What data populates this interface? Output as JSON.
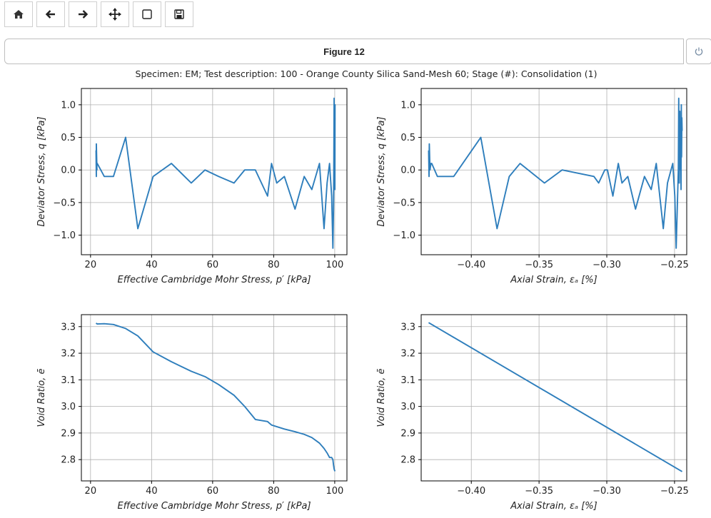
{
  "toolbar": {
    "buttons": [
      {
        "name": "home-button",
        "icon": "home-icon"
      },
      {
        "name": "back-button",
        "icon": "arrow-left-icon"
      },
      {
        "name": "forward-button",
        "icon": "arrow-right-icon"
      },
      {
        "name": "pan-button",
        "icon": "move-icon"
      },
      {
        "name": "zoom-rect-button",
        "icon": "square-icon"
      },
      {
        "name": "save-button",
        "icon": "floppy-disk-icon"
      }
    ]
  },
  "figure": {
    "title": "Figure 12",
    "close_icon": "power-icon",
    "suptitle": "Specimen: EM; Test description: 100 - Orange County Silica Sand-Mesh 60; Stage (#): Consolidation (1)"
  },
  "colors": {
    "series": "#2e7ebc",
    "grid": "#b0b0b0",
    "axis": "#000000"
  },
  "chart_data": [
    {
      "type": "line",
      "xlabel": "Effective Cambridge Mohr Stress,  p′ [kPa]",
      "ylabel": "Deviator Stress,  q [kPa]",
      "xlim": [
        17,
        104
      ],
      "ylim": [
        -1.3,
        1.25
      ],
      "xticks": [
        20,
        40,
        60,
        80,
        100
      ],
      "xtick_labels": [
        "20",
        "40",
        "60",
        "80",
        "100"
      ],
      "yticks": [
        -1.0,
        -0.5,
        0.0,
        0.5,
        1.0
      ],
      "ytick_labels": [
        "−1.0",
        "−0.5",
        "0.0",
        "0.5",
        "1.0"
      ],
      "grid": true,
      "x": [
        21.8,
        21.9,
        21.9,
        22.1,
        22.0,
        22.2,
        24.5,
        27.5,
        31.5,
        35.5,
        40.5,
        46.5,
        53,
        57.5,
        62,
        67,
        70.5,
        74,
        78,
        79.3,
        81,
        83.5,
        87,
        90,
        92.5,
        95,
        96.5,
        97.5,
        98.3,
        99,
        99.4,
        99.6,
        99.7,
        99.8,
        99.85,
        99.9,
        99.95,
        100.0,
        100.05,
        100.1,
        100.0,
        100.1,
        100.05
      ],
      "y": [
        0.3,
        -0.1,
        0.4,
        0.0,
        0.1,
        0.1,
        -0.1,
        -0.1,
        0.5,
        -0.9,
        -0.1,
        0.1,
        -0.2,
        0.0,
        -0.1,
        -0.2,
        0.0,
        0.0,
        -0.4,
        0.1,
        -0.2,
        -0.1,
        -0.6,
        -0.1,
        -0.3,
        0.1,
        -0.9,
        -0.2,
        0.1,
        -0.4,
        -1.2,
        -0.6,
        0.0,
        1.1,
        -0.2,
        0.9,
        0.0,
        0.6,
        -0.3,
        1.0,
        0.2,
        0.8,
        0.6
      ]
    },
    {
      "type": "line",
      "xlabel": "Axial Strain,  εₐ [%]",
      "ylabel": "Deviator Stress,  q [kPa]",
      "xlim": [
        -0.437,
        -0.241
      ],
      "ylim": [
        -1.3,
        1.25
      ],
      "xticks": [
        -0.4,
        -0.35,
        -0.3,
        -0.25
      ],
      "xtick_labels": [
        "−0.40",
        "−0.35",
        "−0.30",
        "−0.25"
      ],
      "yticks": [
        -1.0,
        -0.5,
        0.0,
        0.5,
        1.0
      ],
      "ytick_labels": [
        "−1.0",
        "−0.5",
        "0.0",
        "0.5",
        "1.0"
      ],
      "grid": true,
      "x": [
        -0.4315,
        -0.4312,
        -0.431,
        -0.4305,
        -0.4298,
        -0.4292,
        -0.425,
        -0.413,
        -0.393,
        -0.381,
        -0.372,
        -0.364,
        -0.346,
        -0.333,
        -0.3095,
        -0.306,
        -0.3015,
        -0.2995,
        -0.2955,
        -0.2915,
        -0.2888,
        -0.2845,
        -0.2788,
        -0.2722,
        -0.2672,
        -0.2635,
        -0.2583,
        -0.2552,
        -0.2513,
        -0.2498,
        -0.2488,
        -0.248,
        -0.2472,
        -0.2469,
        -0.2465,
        -0.2461,
        -0.2458,
        -0.2455,
        -0.2452,
        -0.245,
        -0.2448,
        -0.2446,
        -0.2444
      ],
      "y": [
        0.3,
        -0.1,
        0.4,
        0.0,
        0.1,
        0.1,
        -0.1,
        -0.1,
        0.5,
        -0.9,
        -0.1,
        0.1,
        -0.2,
        0.0,
        -0.1,
        -0.2,
        0.0,
        0.0,
        -0.4,
        0.1,
        -0.2,
        -0.1,
        -0.6,
        -0.1,
        -0.3,
        0.1,
        -0.9,
        -0.2,
        0.1,
        -0.4,
        -1.2,
        -0.6,
        0.0,
        1.1,
        -0.2,
        0.9,
        0.0,
        0.6,
        -0.3,
        1.0,
        0.2,
        0.8,
        0.6
      ]
    },
    {
      "type": "line",
      "xlabel": "Effective Cambridge Mohr Stress,  p′ [kPa]",
      "ylabel": "Void Ratio,  ē",
      "xlim": [
        17,
        104
      ],
      "ylim": [
        2.72,
        3.345
      ],
      "xticks": [
        20,
        40,
        60,
        80,
        100
      ],
      "xtick_labels": [
        "20",
        "40",
        "60",
        "80",
        "100"
      ],
      "yticks": [
        2.8,
        2.9,
        3.0,
        3.1,
        3.2,
        3.3
      ],
      "ytick_labels": [
        "2.8",
        "2.9",
        "3.0",
        "3.1",
        "3.2",
        "3.3"
      ],
      "grid": true,
      "x": [
        21.8,
        22.2,
        24.5,
        27.5,
        31.5,
        35.5,
        40.5,
        46.5,
        53,
        57.5,
        62,
        67,
        70.5,
        74,
        78,
        79.3,
        83.5,
        87,
        90,
        92.5,
        95,
        96.5,
        97.5,
        98.3,
        99.0,
        99.4,
        99.6,
        99.8,
        100.0,
        100.1
      ],
      "y": [
        3.313,
        3.31,
        3.311,
        3.308,
        3.293,
        3.265,
        3.205,
        3.168,
        3.132,
        3.112,
        3.082,
        3.042,
        3.0,
        2.951,
        2.943,
        2.93,
        2.915,
        2.905,
        2.895,
        2.883,
        2.862,
        2.842,
        2.825,
        2.808,
        2.808,
        2.8,
        2.78,
        2.765,
        2.758,
        2.76
      ]
    },
    {
      "type": "line",
      "xlabel": "Axial Strain,  εₐ [%]",
      "ylabel": "Void Ratio,  ē",
      "xlim": [
        -0.437,
        -0.241
      ],
      "ylim": [
        2.72,
        3.345
      ],
      "xticks": [
        -0.4,
        -0.35,
        -0.3,
        -0.25
      ],
      "xtick_labels": [
        "−0.40",
        "−0.35",
        "−0.30",
        "−0.25"
      ],
      "yticks": [
        2.8,
        2.9,
        3.0,
        3.1,
        3.2,
        3.3
      ],
      "ytick_labels": [
        "2.8",
        "2.9",
        "3.0",
        "3.1",
        "3.2",
        "3.3"
      ],
      "grid": true,
      "x": [
        -0.4315,
        -0.2444
      ],
      "y": [
        3.315,
        2.755
      ]
    }
  ]
}
